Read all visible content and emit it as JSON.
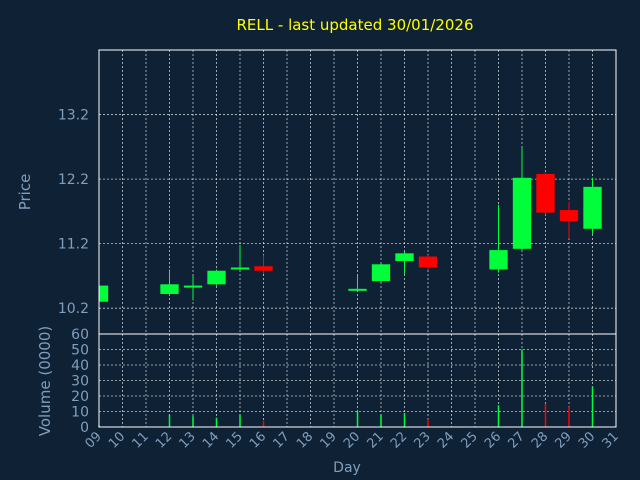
{
  "chart_data": {
    "type": "candlestick",
    "title": "RELL - last updated 30/01/2026",
    "xlabel": "Day",
    "price_panel": {
      "ylabel": "Price",
      "ylim": [
        9.8,
        14.2
      ],
      "yticks": [
        10.2,
        11.2,
        12.2,
        13.2
      ],
      "ytick_labels": [
        "10.2",
        "11.2",
        "12.2",
        "13.2"
      ]
    },
    "volume_panel": {
      "ylabel": "Volume (0000)",
      "ylim": [
        0,
        60
      ],
      "yticks": [
        0,
        10,
        20,
        30,
        40,
        50,
        60
      ],
      "ytick_labels": [
        "0",
        "10",
        "20",
        "30",
        "40",
        "50",
        "60"
      ]
    },
    "x_ticks": [
      "09",
      "10",
      "11",
      "12",
      "13",
      "14",
      "15",
      "16",
      "17",
      "18",
      "19",
      "20",
      "21",
      "22",
      "23",
      "24",
      "25",
      "26",
      "27",
      "28",
      "29",
      "30",
      "31"
    ],
    "colors": {
      "up": "#00ff3a",
      "down": "#ff0000",
      "title": "#ffff00",
      "axis_text": "#7f9fbf",
      "background": "#0f2134",
      "grid": "#ffffff"
    },
    "candles": [
      {
        "day": 9,
        "open": 10.3,
        "close": 10.55,
        "high": 10.6,
        "low": 10.28,
        "volume": 1
      },
      {
        "day": 12,
        "open": 10.42,
        "close": 10.57,
        "high": 10.8,
        "low": 10.4,
        "volume": 8
      },
      {
        "day": 13,
        "open": 10.52,
        "close": 10.55,
        "high": 10.7,
        "low": 10.32,
        "volume": 7
      },
      {
        "day": 14,
        "open": 10.57,
        "close": 10.78,
        "high": 10.8,
        "low": 10.55,
        "volume": 6
      },
      {
        "day": 15,
        "open": 10.82,
        "close": 10.83,
        "high": 11.18,
        "low": 10.78,
        "volume": 8
      },
      {
        "day": 16,
        "open": 10.85,
        "close": 10.78,
        "high": 11.02,
        "low": 10.73,
        "volume": 4
      },
      {
        "day": 20,
        "open": 10.48,
        "close": 10.5,
        "high": 10.7,
        "low": 10.45,
        "volume": 10
      },
      {
        "day": 21,
        "open": 10.62,
        "close": 10.88,
        "high": 10.9,
        "low": 10.6,
        "volume": 8
      },
      {
        "day": 22,
        "open": 10.93,
        "close": 11.05,
        "high": 11.08,
        "low": 10.73,
        "volume": 9
      },
      {
        "day": 23,
        "open": 11.0,
        "close": 10.83,
        "high": 11.02,
        "low": 10.8,
        "volume": 5
      },
      {
        "day": 26,
        "open": 10.8,
        "close": 11.1,
        "high": 11.8,
        "low": 10.75,
        "volume": 14
      },
      {
        "day": 27,
        "open": 11.12,
        "close": 12.22,
        "high": 12.68,
        "low": 11.1,
        "volume": 50
      },
      {
        "day": 28,
        "open": 12.28,
        "close": 11.68,
        "high": 12.3,
        "low": 11.65,
        "volume": 15
      },
      {
        "day": 29,
        "open": 11.72,
        "close": 11.55,
        "high": 11.85,
        "low": 11.28,
        "volume": 13
      },
      {
        "day": 30,
        "open": 11.43,
        "close": 12.08,
        "high": 12.22,
        "low": 11.35,
        "volume": 26
      }
    ]
  }
}
